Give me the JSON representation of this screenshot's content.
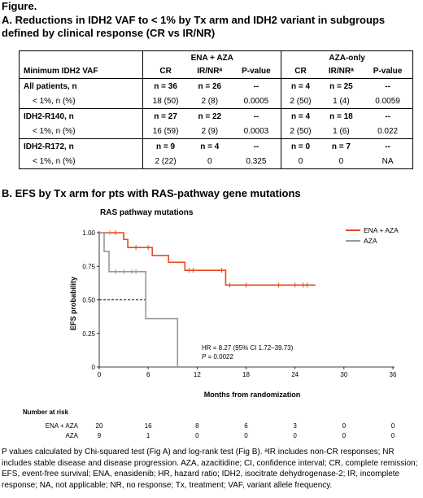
{
  "figure_label": "Figure.",
  "section_a_title": "A. Reductions in IDH2 VAF to < 1% by Tx arm and IDH2 variant in subgroups defined by clinical response (CR vs IR/NR)",
  "table": {
    "group_headers": [
      "ENA + AZA",
      "AZA-only"
    ],
    "row_header": "Minimum IDH2 VAF",
    "col_headers": [
      "CR",
      "IR/NRᵃ",
      "P-value",
      "CR",
      "IR/NRᵃ",
      "P-value"
    ],
    "rows": [
      {
        "label": "All patients, n",
        "cells": [
          "n = 36",
          "n = 26",
          "--",
          "n = 4",
          "n = 25",
          "--"
        ]
      },
      {
        "label": "< 1%, n (%)",
        "cells": [
          "18 (50)",
          "2 (8)",
          "0.0005",
          "2 (50)",
          "1 (4)",
          "0.0059"
        ]
      },
      {
        "label": "IDH2-R140, n",
        "cells": [
          "n = 27",
          "n = 22",
          "--",
          "n = 4",
          "n = 18",
          "--"
        ]
      },
      {
        "label": "< 1%, n (%)",
        "cells": [
          "16 (59)",
          "2 (9)",
          "0.0003",
          "2 (50)",
          "1 (6)",
          "0.022"
        ]
      },
      {
        "label": "IDH2-R172, n",
        "cells": [
          "n = 9",
          "n = 4",
          "--",
          "n = 0",
          "n = 7",
          "--"
        ]
      },
      {
        "label": "< 1%, n (%)",
        "cells": [
          "2 (22)",
          "0",
          "0.325",
          "0",
          "0",
          "NA"
        ]
      }
    ]
  },
  "section_b_title": "B. EFS by Tx arm for pts with RAS-pathway gene mutations",
  "chart_data": {
    "type": "line",
    "title": "RAS pathway mutations",
    "xlabel": "Months from randomization",
    "ylabel": "EFS probability",
    "xlim": [
      0,
      38
    ],
    "ylim": [
      0,
      1.0
    ],
    "x_ticks": [
      "0",
      "6",
      "12",
      "18",
      "24",
      "30",
      "36"
    ],
    "y_ticks": [
      "0",
      "0.25",
      "0.50",
      "0.75",
      "1.00"
    ],
    "legend_position": "top-right",
    "series": [
      {
        "name": "ENA + AZA",
        "color": "#e8491e",
        "steps": [
          [
            0,
            1.0
          ],
          [
            3,
            0.95
          ],
          [
            3.5,
            0.89
          ],
          [
            6.5,
            0.83
          ],
          [
            8.5,
            0.78
          ],
          [
            10.5,
            0.72
          ],
          [
            12,
            0.72
          ],
          [
            15.5,
            0.61
          ],
          [
            26.5,
            0.61
          ]
        ],
        "censors": [
          [
            2,
            1.0
          ],
          [
            4.5,
            0.89
          ],
          [
            6,
            0.89
          ],
          [
            11,
            0.72
          ],
          [
            11.5,
            0.72
          ],
          [
            15,
            0.72
          ],
          [
            16,
            0.61
          ],
          [
            18,
            0.61
          ],
          [
            22,
            0.61
          ],
          [
            24,
            0.61
          ],
          [
            25,
            0.61
          ],
          [
            25.5,
            0.61
          ]
        ]
      },
      {
        "name": "AZA",
        "color": "#999999",
        "steps": [
          [
            0,
            1.0
          ],
          [
            0.6,
            0.86
          ],
          [
            1.2,
            0.71
          ],
          [
            5,
            0.71
          ],
          [
            5.7,
            0.36
          ],
          [
            9.5,
            0.36
          ],
          [
            9.6,
            0.0
          ]
        ],
        "censors": [
          [
            1.3,
            1.0
          ],
          [
            2,
            0.71
          ],
          [
            3,
            0.71
          ],
          [
            4,
            0.71
          ],
          [
            4.5,
            0.71
          ]
        ]
      }
    ],
    "median_line_y": 0.5,
    "median_line_x_end": 5.7,
    "annotation_hr": "HR = 8.27 (95% CI 1.72–39.73)",
    "annotation_p": "P = 0.0022",
    "number_at_risk": {
      "label": "Number at risk",
      "rows": [
        {
          "name": "ENA + AZA",
          "values": [
            "20",
            "16",
            "8",
            "6",
            "3",
            "0",
            "0"
          ]
        },
        {
          "name": "AZA",
          "values": [
            "9",
            "1",
            "0",
            "0",
            "0",
            "0",
            "0"
          ]
        }
      ]
    }
  },
  "footnote": {
    "line1": "P values calculated by Chi-squared test (Fig A) and log-rank test (Fig B). ᵃIR includes non-CR responses; NR includes stable disease and disease progression. AZA, azacitidine; CI, confidence interval; CR, complete remission; EFS, event-free survival; ENA, enasidenib; HR, hazard ratio; IDH2, isocitrate dehydrogenase-2; IR, incomplete response; NA, not applicable; NR, no response; Tx, treatment; VAF, variant allele frequency."
  }
}
